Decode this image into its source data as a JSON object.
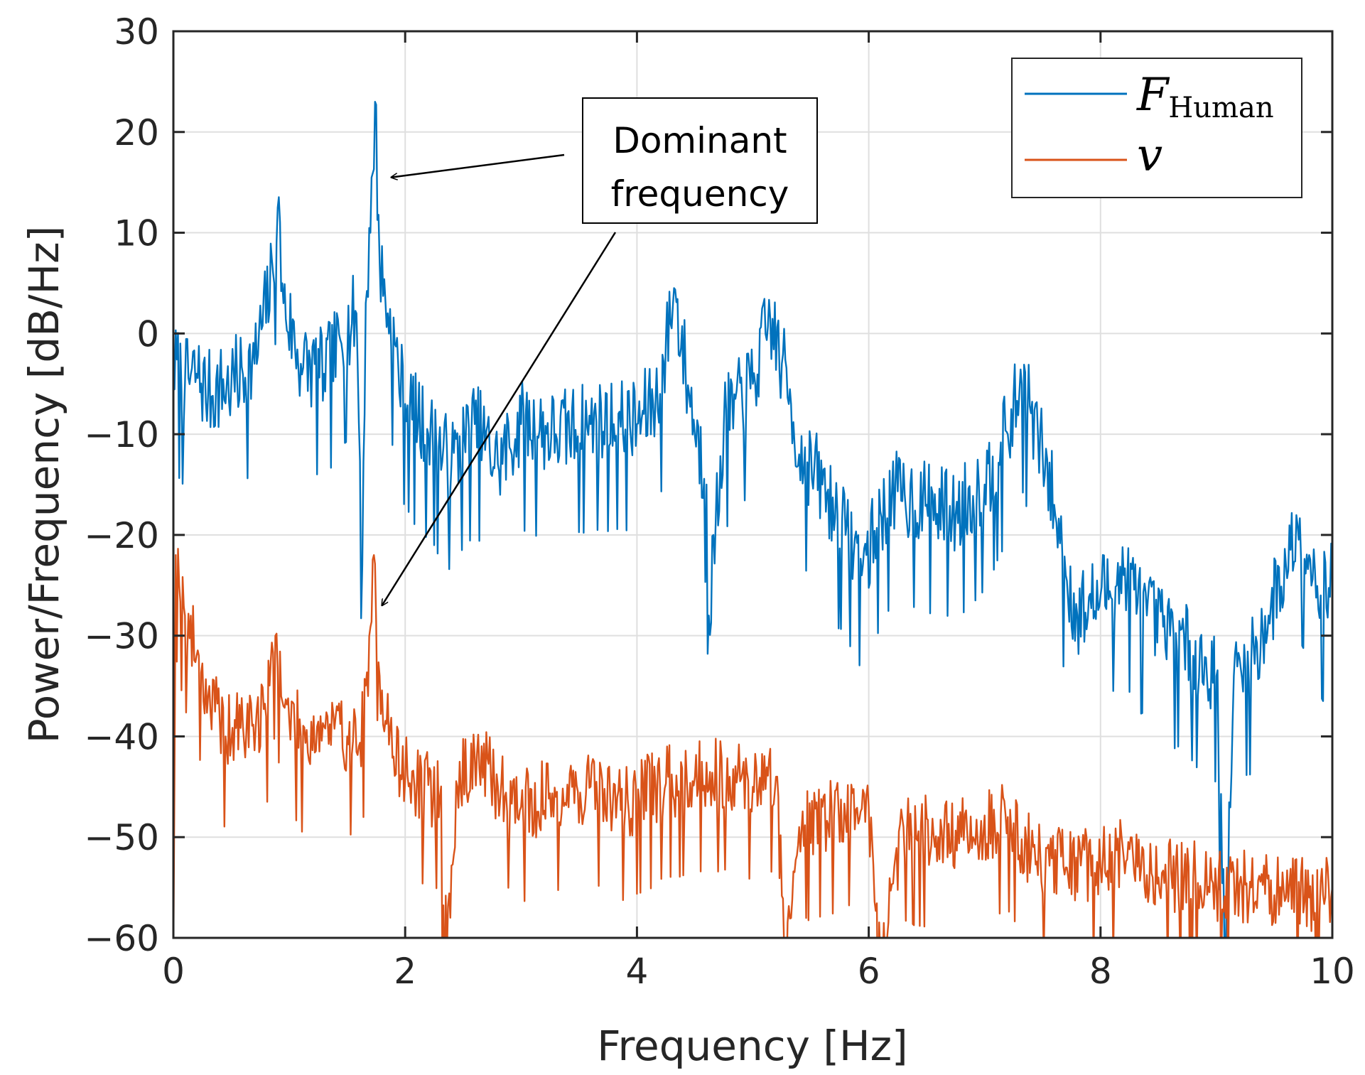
{
  "chart_data": {
    "type": "line",
    "xlabel": "Frequency [Hz]",
    "ylabel": "Power/Frequency [dB/Hz]",
    "xlim": [
      0,
      10
    ],
    "ylim": [
      -60,
      30
    ],
    "xticks": [
      0,
      2,
      4,
      6,
      8,
      10
    ],
    "xtick_labels": [
      "0",
      "2",
      "4",
      "6",
      "8",
      "10"
    ],
    "yticks": [
      30,
      20,
      10,
      0,
      -10,
      -20,
      -30,
      -40,
      -50,
      -60
    ],
    "ytick_labels": [
      "30",
      "20",
      "10",
      "0",
      "−10",
      "−20",
      "−30",
      "−40",
      "−50",
      "−60"
    ],
    "grid": true,
    "legend": {
      "position": "top-right",
      "entries": [
        {
          "label_main": "F",
          "label_sub": "Human",
          "color": "#0072BD"
        },
        {
          "label_main": "v",
          "label_sub": "",
          "color": "#D95319"
        }
      ]
    },
    "annotation": {
      "lines": [
        "Dominant",
        "frequency"
      ],
      "targets": [
        {
          "series": "F_Human",
          "x": 1.88,
          "y": 15.5
        },
        {
          "series": "v",
          "x": 1.8,
          "y": -27
        }
      ]
    },
    "series": [
      {
        "name": "F_Human",
        "color": "#0072BD",
        "noise": 4.5,
        "seed": 7,
        "key_points": [
          [
            0.0,
            -3
          ],
          [
            0.1,
            -5
          ],
          [
            0.2,
            -4
          ],
          [
            0.3,
            -6
          ],
          [
            0.5,
            -5
          ],
          [
            0.7,
            -3
          ],
          [
            0.86,
            6
          ],
          [
            0.9,
            12.5
          ],
          [
            0.95,
            3
          ],
          [
            1.1,
            -3
          ],
          [
            1.3,
            -4
          ],
          [
            1.45,
            -1
          ],
          [
            1.58,
            2
          ],
          [
            1.63,
            -23
          ],
          [
            1.66,
            3
          ],
          [
            1.7,
            10
          ],
          [
            1.74,
            23
          ],
          [
            1.78,
            7
          ],
          [
            1.85,
            2
          ],
          [
            2.0,
            -7
          ],
          [
            2.2,
            -10
          ],
          [
            2.4,
            -13
          ],
          [
            2.6,
            -9
          ],
          [
            2.8,
            -13
          ],
          [
            3.0,
            -9
          ],
          [
            3.3,
            -10
          ],
          [
            3.6,
            -9
          ],
          [
            3.8,
            -9
          ],
          [
            4.0,
            -9
          ],
          [
            4.2,
            -6
          ],
          [
            4.32,
            4.5
          ],
          [
            4.45,
            -6
          ],
          [
            4.6,
            -15
          ],
          [
            4.62,
            -28
          ],
          [
            4.75,
            -9
          ],
          [
            5.0,
            -5
          ],
          [
            5.15,
            1.5
          ],
          [
            5.25,
            -3
          ],
          [
            5.33,
            -7
          ],
          [
            5.4,
            -12
          ],
          [
            5.6,
            -15
          ],
          [
            5.8,
            -20
          ],
          [
            5.95,
            -23
          ],
          [
            6.2,
            -16
          ],
          [
            6.5,
            -17
          ],
          [
            6.75,
            -18
          ],
          [
            7.0,
            -15
          ],
          [
            7.2,
            -10
          ],
          [
            7.32,
            -5
          ],
          [
            7.5,
            -12
          ],
          [
            7.6,
            -17
          ],
          [
            7.7,
            -24
          ],
          [
            7.8,
            -28
          ],
          [
            8.0,
            -26
          ],
          [
            8.2,
            -24
          ],
          [
            8.4,
            -28
          ],
          [
            8.6,
            -30
          ],
          [
            8.8,
            -32
          ],
          [
            9.0,
            -34
          ],
          [
            9.08,
            -62
          ],
          [
            9.15,
            -34
          ],
          [
            9.3,
            -33
          ],
          [
            9.45,
            -28
          ],
          [
            9.6,
            -23
          ],
          [
            9.7,
            -19
          ],
          [
            9.8,
            -22
          ],
          [
            9.9,
            -26
          ],
          [
            10.0,
            -25
          ]
        ]
      },
      {
        "name": "v",
        "color": "#D95319",
        "noise": 4.0,
        "seed": 19,
        "key_points": [
          [
            0.0,
            -62
          ],
          [
            0.02,
            -22
          ],
          [
            0.05,
            -25
          ],
          [
            0.1,
            -28
          ],
          [
            0.2,
            -32
          ],
          [
            0.3,
            -36
          ],
          [
            0.45,
            -40
          ],
          [
            0.6,
            -39
          ],
          [
            0.8,
            -38
          ],
          [
            0.88,
            -30
          ],
          [
            0.95,
            -37
          ],
          [
            1.1,
            -40
          ],
          [
            1.3,
            -39
          ],
          [
            1.5,
            -40
          ],
          [
            1.6,
            -41
          ],
          [
            1.68,
            -36
          ],
          [
            1.73,
            -22
          ],
          [
            1.78,
            -34
          ],
          [
            1.9,
            -42
          ],
          [
            2.1,
            -45
          ],
          [
            2.3,
            -46
          ],
          [
            2.36,
            -62
          ],
          [
            2.45,
            -45
          ],
          [
            2.6,
            -42
          ],
          [
            2.8,
            -45
          ],
          [
            3.0,
            -47
          ],
          [
            3.3,
            -46
          ],
          [
            3.6,
            -45
          ],
          [
            3.9,
            -47
          ],
          [
            4.2,
            -45
          ],
          [
            4.5,
            -44
          ],
          [
            4.8,
            -44
          ],
          [
            5.0,
            -45
          ],
          [
            5.2,
            -44
          ],
          [
            5.28,
            -62
          ],
          [
            5.4,
            -49
          ],
          [
            5.7,
            -48
          ],
          [
            6.0,
            -47
          ],
          [
            6.1,
            -62
          ],
          [
            6.3,
            -49
          ],
          [
            6.6,
            -50
          ],
          [
            6.9,
            -50
          ],
          [
            7.2,
            -48
          ],
          [
            7.4,
            -52
          ],
          [
            7.7,
            -53
          ],
          [
            8.0,
            -53
          ],
          [
            8.2,
            -52
          ],
          [
            8.5,
            -54
          ],
          [
            8.8,
            -54
          ],
          [
            9.0,
            -55
          ],
          [
            9.3,
            -55
          ],
          [
            9.6,
            -56
          ],
          [
            9.8,
            -56
          ],
          [
            10.0,
            -55
          ]
        ]
      }
    ]
  }
}
